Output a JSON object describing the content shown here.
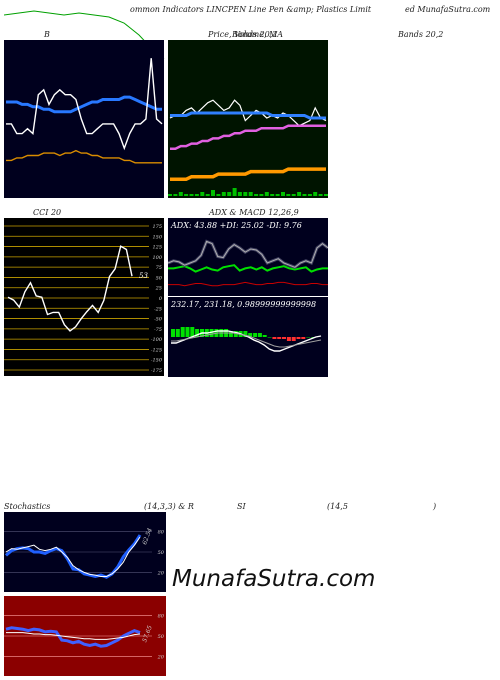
{
  "header": {
    "left": "ommon  Indicators LINCPEN  Line Pen &amp; Plastics Limit",
    "right": "ed MunafaSutra.com"
  },
  "titles": {
    "b": "B",
    "price": "Price,  Volume,  MA",
    "price_overlay": "Bands 20,2",
    "bands": "Bands 20,2",
    "cci": "CCI 20",
    "adx": "ADX  & MACD 12,26,9",
    "stoch": "Stochastics",
    "stoch_params": "(14,3,3) & R",
    "si": "SI",
    "si_params": "(14,5",
    "si_close": ")"
  },
  "adx_text": "ADX: 43.88  +DI: 25.02  -DI: 9.76",
  "macd_text": "232.17,  231.18,  0.98999999999998",
  "cci_current": "53",
  "stoch_current": "62.54",
  "rsi_current": "57.65",
  "watermark": "MunafaSutra.com",
  "colors": {
    "dark_panel": "#00001e",
    "price_panel": "#001400",
    "rsi_panel": "#8b0000",
    "cci_panel": "#000000",
    "cci_grid": "#c8a200",
    "rsi_grid": "#ffa0a0"
  },
  "chart_data": [
    {
      "type": "line",
      "panel": "bollinger",
      "title": "B",
      "series": [
        {
          "color": "#2878ff",
          "values": [
            57,
            57,
            57,
            56,
            56,
            55,
            55,
            54,
            54,
            53,
            53,
            53,
            53,
            54,
            55,
            56,
            57,
            57,
            58,
            58,
            58,
            58,
            59,
            59,
            58,
            57,
            56,
            55,
            54,
            54
          ]
        },
        {
          "color": "#ffffff",
          "values": [
            48,
            48,
            44,
            44,
            46,
            44,
            60,
            62,
            56,
            60,
            62,
            60,
            60,
            58,
            50,
            44,
            44,
            46,
            48,
            48,
            48,
            44,
            38,
            44,
            48,
            48,
            50,
            75,
            50,
            48
          ]
        },
        {
          "color": "#d98c00",
          "values": [
            33,
            33,
            34,
            34,
            35,
            35,
            35,
            36,
            36,
            36,
            35,
            36,
            36,
            37,
            36,
            36,
            35,
            35,
            34,
            34,
            34,
            34,
            33,
            33,
            32,
            32,
            32,
            32,
            32,
            32
          ]
        }
      ]
    },
    {
      "type": "line",
      "panel": "price",
      "title": "Price,  Volume,  MA",
      "series": [
        {
          "color": "#ffffff",
          "values": [
            229,
            230,
            230,
            232,
            233,
            231,
            233,
            235,
            236,
            234,
            232,
            233,
            236,
            234,
            228,
            230,
            232,
            231,
            229,
            230,
            229,
            231,
            230,
            228,
            226,
            227,
            228,
            233,
            229,
            228
          ]
        },
        {
          "color": "#3080ff",
          "values": [
            230,
            230,
            230,
            230,
            231,
            231,
            231,
            231,
            231,
            231,
            231,
            231,
            231,
            231,
            231,
            231,
            231,
            231,
            231,
            230,
            230,
            230,
            230,
            230,
            230,
            230,
            229,
            229,
            229,
            229
          ]
        },
        {
          "color": "#e060e0",
          "values": [
            217,
            217,
            218,
            218,
            219,
            219,
            220,
            220,
            221,
            221,
            222,
            222,
            223,
            223,
            224,
            224,
            224,
            225,
            225,
            225,
            225,
            225,
            226,
            226,
            226,
            226,
            226,
            226,
            226,
            226
          ]
        },
        {
          "color": "#ff9900",
          "values": [
            205,
            205,
            205,
            205,
            206,
            206,
            206,
            206,
            206,
            207,
            207,
            207,
            207,
            207,
            207,
            208,
            208,
            208,
            208,
            208,
            208,
            208,
            209,
            209,
            209,
            209,
            209,
            209,
            209,
            209
          ]
        }
      ],
      "volume": [
        1,
        1,
        2,
        1,
        1,
        1,
        2,
        1,
        3,
        1,
        2,
        2,
        4,
        2,
        2,
        2,
        1,
        1,
        2,
        1,
        1,
        2,
        1,
        1,
        2,
        1,
        1,
        2,
        1,
        1
      ]
    },
    {
      "type": "line",
      "panel": "cci",
      "title": "CCI 20",
      "ylim": [
        -175,
        175
      ],
      "ticks": [
        175,
        150,
        125,
        100,
        75,
        50,
        25,
        0,
        -25,
        -50,
        -75,
        -100,
        -125,
        -150,
        -175
      ],
      "series": [
        {
          "color": "#ffffff",
          "values": [
            2,
            -5,
            -22,
            15,
            37,
            5,
            2,
            -40,
            -35,
            -35,
            -65,
            -80,
            -70,
            -50,
            -33,
            -18,
            -35,
            -6,
            52,
            71,
            126,
            118,
            53
          ]
        }
      ]
    },
    {
      "type": "line",
      "panel": "adx",
      "title": "ADX  & MACD 12,26,9",
      "series": [
        {
          "color": "#00e000",
          "values": [
            25,
            25,
            26,
            27,
            25,
            22,
            24,
            26,
            24,
            23,
            26,
            27,
            28,
            23,
            25,
            26,
            24,
            26,
            23,
            25,
            26,
            27,
            25,
            24,
            25,
            26,
            22,
            24,
            25,
            25
          ]
        },
        {
          "color": "#c80000",
          "values": [
            10,
            10,
            10,
            9,
            10,
            11,
            11,
            10,
            9,
            9,
            10,
            10,
            10,
            11,
            12,
            11,
            10,
            10,
            11,
            11,
            12,
            12,
            11,
            10,
            10,
            10,
            11,
            11,
            10,
            10
          ]
        },
        {
          "color": "#b0b0b0",
          "values": [
            30,
            32,
            31,
            28,
            30,
            32,
            37,
            50,
            48,
            36,
            35,
            43,
            47,
            44,
            40,
            43,
            42,
            38,
            30,
            32,
            34,
            30,
            28,
            26,
            30,
            32,
            30,
            44,
            48,
            44
          ]
        }
      ]
    },
    {
      "type": "bar",
      "panel": "macd",
      "series": [
        {
          "color": "#00e000",
          "values": [
            4,
            4,
            5,
            5,
            5,
            4,
            4,
            4,
            4,
            4,
            4,
            4,
            3,
            3,
            3,
            3,
            2,
            2,
            2,
            1,
            0,
            -1,
            -1,
            -1,
            -2,
            -2,
            -1,
            -1,
            0,
            0
          ]
        }
      ]
    },
    {
      "type": "line",
      "panel": "stochastics",
      "title": "Stochastics",
      "ylim": [
        0,
        100
      ],
      "ticks": [
        80,
        50,
        20
      ],
      "series": [
        {
          "color": "#2060ff",
          "values": [
            45,
            52,
            55,
            56,
            55,
            50,
            50,
            48,
            52,
            55,
            52,
            40,
            25,
            24,
            18,
            16,
            14,
            16,
            13,
            18,
            28,
            43,
            53,
            62,
            75
          ]
        },
        {
          "color": "#ffffff",
          "values": [
            50,
            55,
            54,
            56,
            58,
            60,
            54,
            52,
            54,
            57,
            50,
            42,
            30,
            24,
            20,
            17,
            16,
            14,
            14,
            18,
            25,
            35,
            50,
            60,
            72
          ]
        }
      ]
    },
    {
      "type": "line",
      "panel": "rsi",
      "title": "SI",
      "ylim": [
        0,
        100
      ],
      "ticks": [
        80,
        50,
        20
      ],
      "series": [
        {
          "color": "#4060ff",
          "values": [
            60,
            62,
            61,
            60,
            58,
            60,
            59,
            56,
            57,
            56,
            44,
            43,
            40,
            42,
            38,
            36,
            38,
            35,
            36,
            40,
            44,
            50,
            54,
            58,
            55
          ]
        },
        {
          "color": "#ffffff",
          "values": [
            55,
            55,
            55,
            55,
            54,
            53,
            53,
            52,
            52,
            51,
            50,
            49,
            48,
            47,
            46,
            46,
            45,
            45,
            45,
            46,
            47,
            48,
            50,
            52,
            53
          ]
        }
      ]
    }
  ]
}
